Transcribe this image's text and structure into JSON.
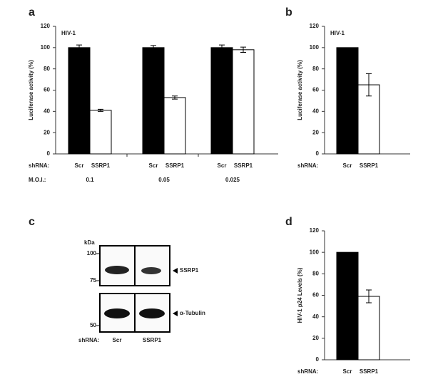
{
  "chart_data": [
    {
      "type": "bar",
      "panel": "a",
      "annotation": "HIV-1",
      "y_label": "Luciferase activity (%)",
      "series_row_label": "shRNA:",
      "category_row_label": "M.O.I.:",
      "categories": [
        "0.1",
        "0.05",
        "0.025"
      ],
      "series": [
        {
          "name": "Scr",
          "color": "#000000",
          "values": [
            100,
            100,
            100
          ],
          "errors": [
            2.5,
            2,
            2.5
          ]
        },
        {
          "name": "SSRP1",
          "color": "#ffffff",
          "values": [
            41,
            53,
            98
          ],
          "errors": [
            1,
            1.5,
            2.5
          ]
        }
      ],
      "ylim": [
        0,
        120
      ],
      "yticks": [
        0,
        20,
        40,
        60,
        80,
        100,
        120
      ]
    },
    {
      "type": "bar",
      "panel": "b",
      "annotation": "HIV-1",
      "y_label": "Luciferase activity (%)",
      "series_row_label": "shRNA:",
      "categories": [
        null
      ],
      "series": [
        {
          "name": "Scr",
          "color": "#000000",
          "values": [
            100
          ],
          "errors": [
            null
          ]
        },
        {
          "name": "SSRP1",
          "color": "#ffffff",
          "values": [
            65
          ],
          "errors": [
            10.5
          ]
        }
      ],
      "ylim": [
        0,
        120
      ],
      "yticks": [
        0,
        20,
        40,
        60,
        80,
        100,
        120
      ]
    },
    {
      "type": "bar",
      "panel": "d",
      "y_label": "HIV-1 p24 Levels (%)",
      "series_row_label": "shRNA:",
      "categories": [
        null
      ],
      "series": [
        {
          "name": "Scr",
          "color": "#000000",
          "values": [
            100
          ],
          "errors": [
            null
          ]
        },
        {
          "name": "SSRP1",
          "color": "#ffffff",
          "values": [
            59
          ],
          "errors": [
            6
          ]
        }
      ],
      "ylim": [
        0,
        120
      ],
      "yticks": [
        0,
        20,
        40,
        60,
        80,
        100,
        120
      ]
    }
  ],
  "blot": {
    "panel": "c",
    "unit": "kDa",
    "markers": [
      "100",
      "75",
      "50"
    ],
    "bands": [
      "SSRP1",
      "α-Tubulin"
    ],
    "row_label": "shRNA:",
    "lanes": [
      "Scr",
      "SSRP1"
    ]
  }
}
